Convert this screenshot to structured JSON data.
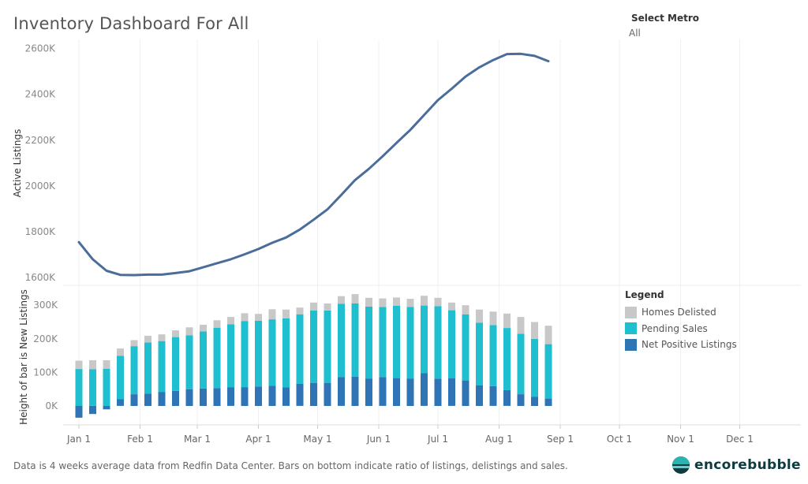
{
  "title": "Inventory Dashboard For All",
  "filter": {
    "label": "Select Metro",
    "value": "All"
  },
  "footnote": "Data is 4 weeks average data from Redfin Data Center. Bars on bottom indicate ratio of listings, delistings and sales.",
  "brand": "encorebubble",
  "legend": {
    "title": "Legend",
    "items": [
      {
        "label": "Homes Delisted",
        "color": "#c8c8c8"
      },
      {
        "label": "Pending Sales",
        "color": "#1fbfcf"
      },
      {
        "label": "Net Positive Listings",
        "color": "#2f74b5"
      }
    ]
  },
  "chart_data": [
    {
      "type": "line",
      "ylabel": "Active Listings",
      "ylim": [
        1580,
        2640
      ],
      "yticks": [
        1600,
        1800,
        2000,
        2200,
        2400,
        2600
      ],
      "ytick_labels": [
        "1600K",
        "1800K",
        "2000K",
        "2200K",
        "2400K",
        "2600K"
      ],
      "color": "#4a6d9a",
      "grid": "vertical",
      "x": [
        "2020-01-01",
        "2020-01-08",
        "2020-01-15",
        "2020-01-22",
        "2020-01-29",
        "2020-02-05",
        "2020-02-12",
        "2020-02-19",
        "2020-02-26",
        "2020-03-04",
        "2020-03-11",
        "2020-03-18",
        "2020-03-25",
        "2020-04-01",
        "2020-04-08",
        "2020-04-15",
        "2020-04-22",
        "2020-04-29",
        "2020-05-06",
        "2020-05-13",
        "2020-05-20",
        "2020-05-27",
        "2020-06-03",
        "2020-06-10",
        "2020-06-17",
        "2020-06-24",
        "2020-07-01",
        "2020-07-08",
        "2020-07-15",
        "2020-07-22",
        "2020-07-29",
        "2020-08-05",
        "2020-08-12",
        "2020-08-19",
        "2020-08-26"
      ],
      "y": [
        1755,
        1680,
        1630,
        1612,
        1611,
        1613,
        1613,
        1620,
        1628,
        1645,
        1663,
        1680,
        1702,
        1725,
        1752,
        1775,
        1810,
        1853,
        1898,
        1961,
        2026,
        2075,
        2130,
        2188,
        2245,
        2310,
        2375,
        2425,
        2478,
        2518,
        2550,
        2576,
        2577,
        2568,
        2545
      ]
    },
    {
      "type": "bar",
      "stacked": true,
      "ylabel": "Height of bar is New Listings",
      "ylim": [
        -40,
        345
      ],
      "yticks": [
        0,
        100,
        200,
        300
      ],
      "ytick_labels": [
        "0K",
        "100K",
        "200K",
        "300K"
      ],
      "xlim": [
        "2020-01-01",
        "2020-12-31"
      ],
      "xticks": [
        "2020-01-01",
        "2020-02-01",
        "2020-03-01",
        "2020-04-01",
        "2020-05-01",
        "2020-06-01",
        "2020-07-01",
        "2020-08-01",
        "2020-09-01",
        "2020-10-01",
        "2020-11-01",
        "2020-12-01"
      ],
      "xtick_labels": [
        "Jan 1",
        "Feb 1",
        "Mar 1",
        "Apr 1",
        "May 1",
        "Jun 1",
        "Jul 1",
        "Aug 1",
        "Sep 1",
        "Oct 1",
        "Nov 1",
        "Dec 1"
      ],
      "categories": [
        "2020-01-01",
        "2020-01-08",
        "2020-01-15",
        "2020-01-22",
        "2020-01-29",
        "2020-02-05",
        "2020-02-12",
        "2020-02-19",
        "2020-02-26",
        "2020-03-04",
        "2020-03-11",
        "2020-03-18",
        "2020-03-25",
        "2020-04-01",
        "2020-04-08",
        "2020-04-15",
        "2020-04-22",
        "2020-04-29",
        "2020-05-06",
        "2020-05-13",
        "2020-05-20",
        "2020-05-27",
        "2020-06-03",
        "2020-06-10",
        "2020-06-17",
        "2020-06-24",
        "2020-07-01",
        "2020-07-08",
        "2020-07-15",
        "2020-07-22",
        "2020-07-29",
        "2020-08-05",
        "2020-08-12",
        "2020-08-19",
        "2020-08-26"
      ],
      "series": [
        {
          "name": "Net Positive Listings",
          "color": "#2f74b5",
          "values": [
            -35,
            -24,
            -10,
            20,
            35,
            37,
            42,
            45,
            50,
            52,
            53,
            55,
            56,
            58,
            60,
            55,
            66,
            68,
            68,
            86,
            87,
            81,
            86,
            83,
            81,
            98,
            81,
            82,
            76,
            61,
            59,
            47,
            35,
            27,
            22
          ]
        },
        {
          "name": "Pending Sales",
          "color": "#1fbfcf",
          "values": [
            110,
            109,
            111,
            129,
            143,
            152,
            151,
            160,
            160,
            170,
            180,
            188,
            197,
            196,
            198,
            206,
            207,
            216,
            216,
            218,
            218,
            215,
            209,
            215,
            214,
            201,
            216,
            203,
            197,
            187,
            182,
            185,
            180,
            173,
            162
          ]
        },
        {
          "name": "Homes Delisted",
          "color": "#c8c8c8",
          "values": [
            25,
            27,
            25,
            22,
            18,
            20,
            20,
            20,
            24,
            20,
            22,
            22,
            23,
            20,
            30,
            26,
            20,
            24,
            21,
            23,
            28,
            26,
            25,
            25,
            24,
            29,
            25,
            23,
            27,
            39,
            40,
            43,
            50,
            50,
            55
          ]
        }
      ]
    }
  ]
}
